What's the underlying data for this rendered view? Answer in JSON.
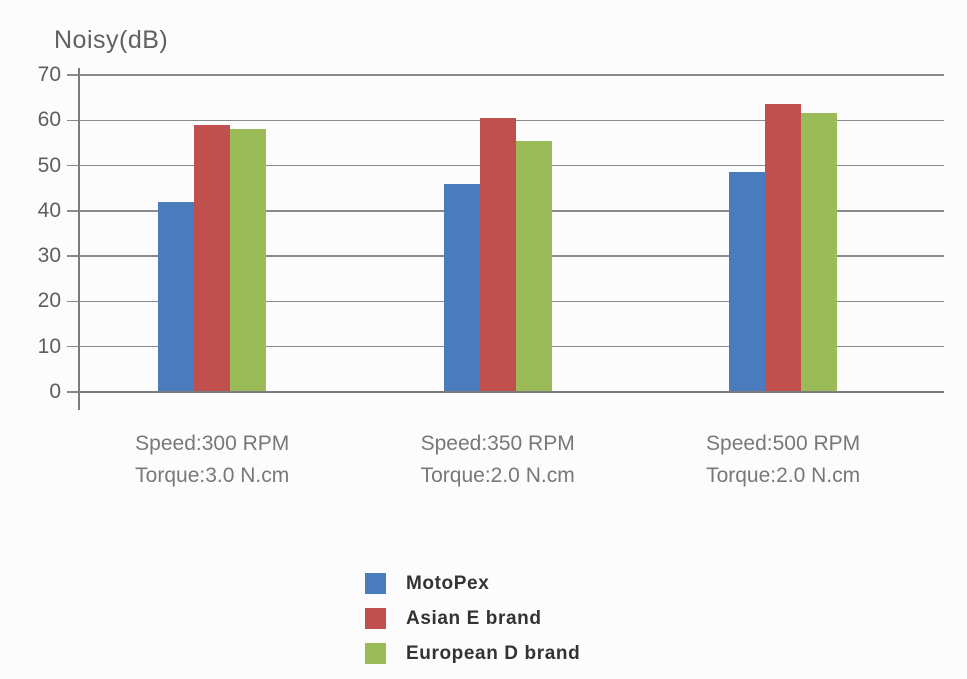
{
  "chart_data": {
    "type": "bar",
    "title": "Noisy(dB)",
    "ylabel": "Noisy(dB)",
    "categories": [
      {
        "line1": "Speed:300 RPM",
        "line2": "Torque:3.0 N.cm"
      },
      {
        "line1": "Speed:350 RPM",
        "line2": "Torque:2.0 N.cm"
      },
      {
        "line1": "Speed:500 RPM",
        "line2": "Torque:2.0 N.cm"
      }
    ],
    "series": [
      {
        "name": "MotoPex",
        "color": "#4A7CBD",
        "values": [
          42,
          46,
          48.5
        ]
      },
      {
        "name": "Asian E brand",
        "color": "#C0504D",
        "values": [
          59,
          60.5,
          63.5
        ]
      },
      {
        "name": "European D brand",
        "color": "#9BBB59",
        "values": [
          58,
          55.5,
          61.5
        ]
      }
    ],
    "ylim": [
      0,
      70
    ],
    "yticks": [
      0,
      10,
      20,
      30,
      40,
      50,
      60,
      70
    ],
    "grid": true,
    "legend_position": "bottom"
  },
  "colors": {
    "background": "#fcfcfc",
    "gridline": "#8a8a8a",
    "axis": "#7c7c7c",
    "title_text": "#616161",
    "tick_text": "#5e5e5e",
    "category_text": "#787878",
    "legend_text": "#333333"
  }
}
